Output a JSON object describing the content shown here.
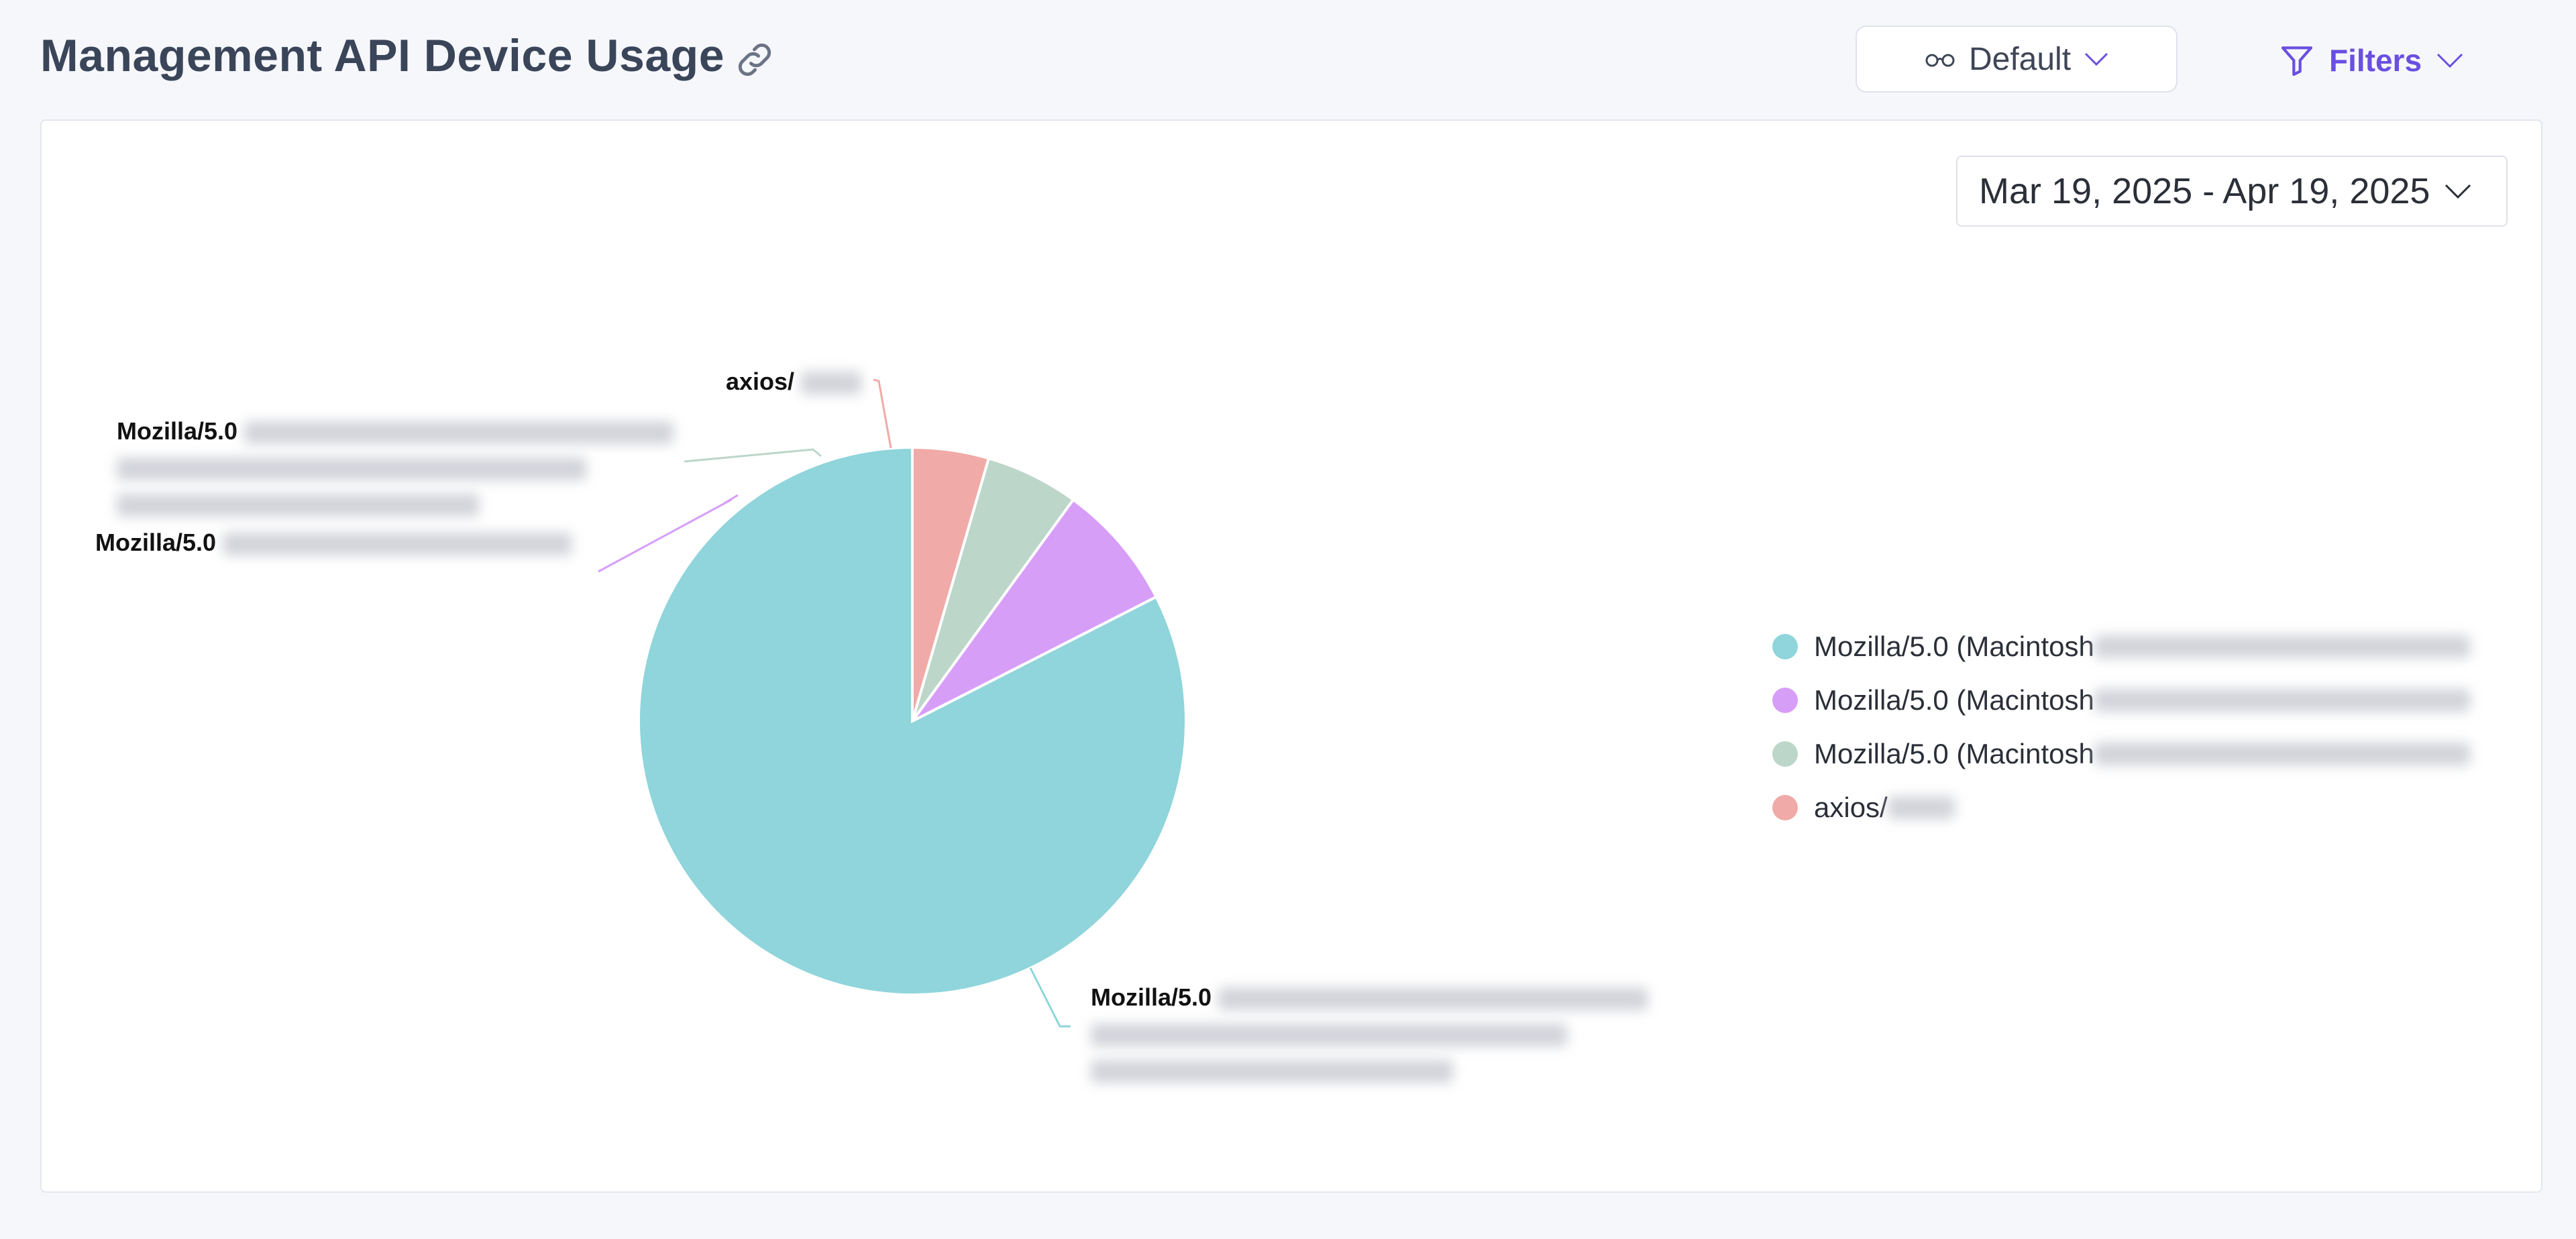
{
  "header": {
    "title": "Management API Device Usage",
    "view_label": "Default",
    "filters_label": "Filters"
  },
  "date_range": "Mar 19, 2025 - Apr 19, 2025",
  "colors": {
    "accent": "#6a4fe0",
    "title": "#3a4559"
  },
  "icons": [
    "link-icon",
    "glasses-icon",
    "chevron-down-icon",
    "filter-icon"
  ],
  "chart_data": {
    "type": "pie",
    "slices": [
      {
        "label": "Mozilla/5.0",
        "legend": "Mozilla/5.0 (Macintosh",
        "value": 82.5,
        "color": "#8fd5db"
      },
      {
        "label": "Mozilla/5.0",
        "legend": "Mozilla/5.0 (Macintosh",
        "value": 7.5,
        "color": "#d79ef8"
      },
      {
        "label": "Mozilla/5.0",
        "legend": "Mozilla/5.0 (Macintosh",
        "value": 5.5,
        "color": "#bcd6c9"
      },
      {
        "label": "axios/",
        "legend": "axios/",
        "value": 4.5,
        "color": "#f0aaa7"
      }
    ],
    "legend_position": "right"
  }
}
